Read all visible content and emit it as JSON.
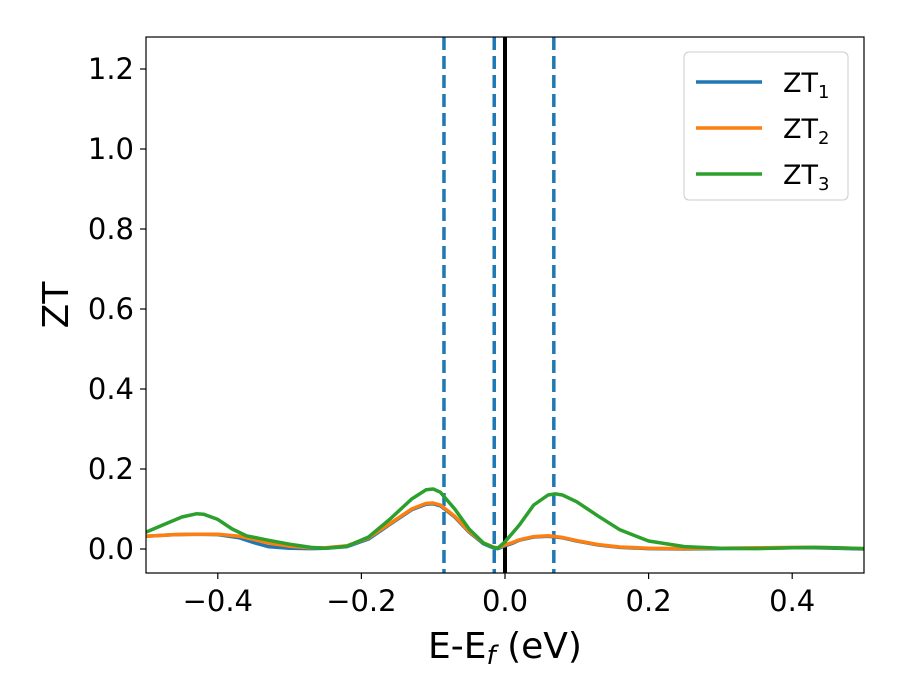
{
  "chart_data": {
    "type": "line",
    "title": "",
    "xlabel": "E-E",
    "xlabel_subscript": "f",
    "xlabel_unit": " (eV)",
    "ylabel": "ZT",
    "xlim": [
      -0.5,
      0.5
    ],
    "ylim": [
      -0.06,
      1.28
    ],
    "xticks": [
      -0.4,
      -0.2,
      0.0,
      0.2,
      0.4
    ],
    "xtick_labels": [
      "−0.4",
      "−0.2",
      "0.0",
      "0.2",
      "0.4"
    ],
    "yticks": [
      0.0,
      0.2,
      0.4,
      0.6,
      0.8,
      1.0,
      1.2
    ],
    "ytick_labels": [
      "0.0",
      "0.2",
      "0.4",
      "0.6",
      "0.8",
      "1.0",
      "1.2"
    ],
    "grid": false,
    "legend_position": "top-right",
    "series": [
      {
        "name": "ZT",
        "name_subscript": "1",
        "color": "#1f77b4",
        "x": [
          -0.5,
          -0.46,
          -0.43,
          -0.4,
          -0.37,
          -0.35,
          -0.33,
          -0.3,
          -0.27,
          -0.25,
          -0.22,
          -0.19,
          -0.16,
          -0.13,
          -0.11,
          -0.1,
          -0.09,
          -0.07,
          -0.05,
          -0.03,
          -0.015,
          -0.01,
          0.0,
          0.01,
          0.02,
          0.04,
          0.06,
          0.08,
          0.1,
          0.13,
          0.16,
          0.2,
          0.25,
          0.3,
          0.35,
          0.4,
          0.43,
          0.46,
          0.5
        ],
        "y": [
          0.032,
          0.036,
          0.037,
          0.036,
          0.028,
          0.016,
          0.006,
          0.002,
          0.001,
          0.002,
          0.006,
          0.025,
          0.062,
          0.098,
          0.112,
          0.113,
          0.108,
          0.08,
          0.042,
          0.013,
          0.002,
          0.001,
          0.008,
          0.014,
          0.022,
          0.03,
          0.032,
          0.028,
          0.02,
          0.01,
          0.004,
          0.001,
          0.0,
          0.001,
          0.002,
          0.003,
          0.003,
          0.002,
          0.0
        ]
      },
      {
        "name": "ZT",
        "name_subscript": "2",
        "color": "#ff7f0e",
        "x": [
          -0.5,
          -0.46,
          -0.43,
          -0.4,
          -0.37,
          -0.35,
          -0.33,
          -0.3,
          -0.27,
          -0.25,
          -0.22,
          -0.19,
          -0.16,
          -0.13,
          -0.11,
          -0.1,
          -0.09,
          -0.07,
          -0.05,
          -0.03,
          -0.015,
          -0.01,
          0.0,
          0.01,
          0.02,
          0.04,
          0.06,
          0.08,
          0.1,
          0.13,
          0.16,
          0.2,
          0.25,
          0.3,
          0.35,
          0.4,
          0.43,
          0.46,
          0.5
        ],
        "y": [
          0.032,
          0.036,
          0.037,
          0.037,
          0.032,
          0.024,
          0.015,
          0.007,
          0.003,
          0.003,
          0.008,
          0.028,
          0.064,
          0.1,
          0.114,
          0.115,
          0.11,
          0.082,
          0.044,
          0.015,
          0.004,
          0.003,
          0.01,
          0.016,
          0.023,
          0.031,
          0.033,
          0.029,
          0.021,
          0.011,
          0.005,
          0.002,
          0.001,
          0.002,
          0.003,
          0.004,
          0.004,
          0.003,
          0.001
        ]
      },
      {
        "name": "ZT",
        "name_subscript": "3",
        "color": "#2ca02c",
        "x": [
          -0.5,
          -0.47,
          -0.45,
          -0.43,
          -0.42,
          -0.4,
          -0.38,
          -0.36,
          -0.33,
          -0.3,
          -0.27,
          -0.25,
          -0.22,
          -0.19,
          -0.16,
          -0.13,
          -0.11,
          -0.1,
          -0.09,
          -0.07,
          -0.05,
          -0.03,
          -0.015,
          -0.01,
          0.0,
          0.02,
          0.04,
          0.06,
          0.07,
          0.08,
          0.1,
          0.13,
          0.16,
          0.2,
          0.25,
          0.3,
          0.35,
          0.4,
          0.43,
          0.46,
          0.5
        ],
        "y": [
          0.042,
          0.065,
          0.08,
          0.088,
          0.087,
          0.074,
          0.05,
          0.033,
          0.022,
          0.012,
          0.004,
          0.002,
          0.007,
          0.03,
          0.075,
          0.125,
          0.148,
          0.15,
          0.142,
          0.1,
          0.05,
          0.015,
          0.003,
          0.002,
          0.018,
          0.06,
          0.11,
          0.135,
          0.138,
          0.135,
          0.118,
          0.082,
          0.048,
          0.02,
          0.006,
          0.002,
          0.001,
          0.003,
          0.004,
          0.003,
          0.001
        ]
      }
    ],
    "vertical_lines": [
      {
        "x": -0.085,
        "style": "dashed",
        "color": "#1f77b4"
      },
      {
        "x": -0.015,
        "style": "dashed",
        "color": "#1f77b4"
      },
      {
        "x": 0.0,
        "style": "solid",
        "color": "#000000"
      },
      {
        "x": 0.068,
        "style": "dashed",
        "color": "#1f77b4"
      }
    ]
  }
}
